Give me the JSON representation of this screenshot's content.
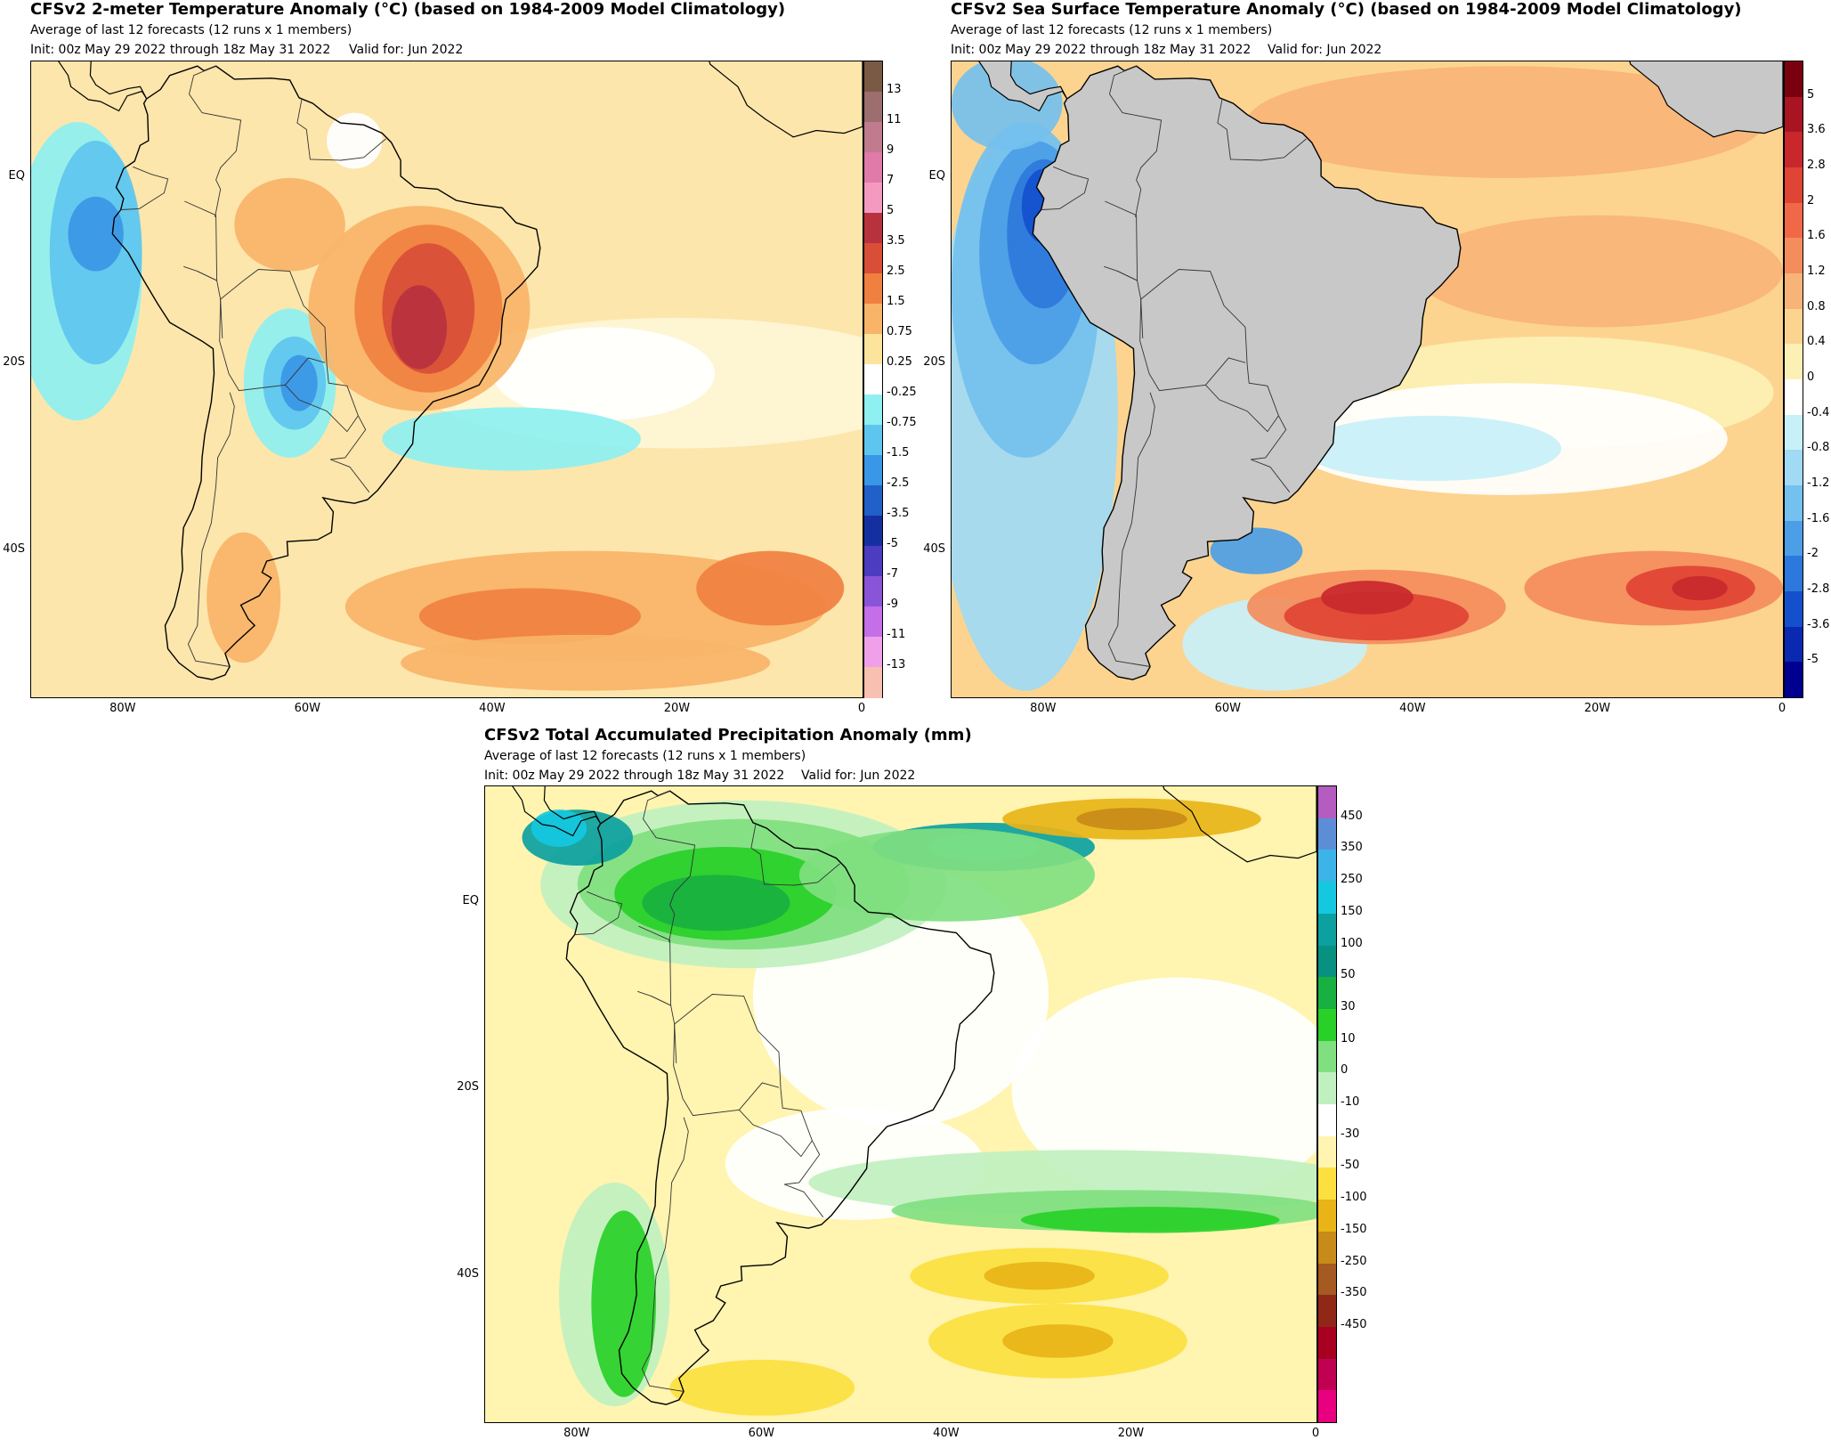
{
  "panels": [
    {
      "id": "t2m",
      "title": "CFSv2 2-meter Temperature Anomaly (°C) (based on 1984-2009 Model Climatology)",
      "subtitle": "Average of last 12 forecasts (12 runs x 1 members)",
      "init": "Init: 00z May 29 2022 through 18z May 31 2022",
      "valid": "Valid for: Jun 2022",
      "y_ticks": [
        "EQ",
        "20S",
        "40S"
      ],
      "x_ticks": [
        "80W",
        "60W",
        "40W",
        "20W",
        "0"
      ],
      "colorbar": {
        "labels": [
          "13",
          "11",
          "9",
          "7",
          "5",
          "3.5",
          "2.5",
          "1.5",
          "0.75",
          "0.25",
          "-0.25",
          "-0.75",
          "-1.5",
          "-2.5",
          "-3.5",
          "-5",
          "-7",
          "-9",
          "-11",
          "-13"
        ],
        "colors": [
          "#7a5a44",
          "#9c6e6e",
          "#c07c8e",
          "#e07aa8",
          "#f49ac1",
          "#b8323e",
          "#d84e36",
          "#f08040",
          "#f8b468",
          "#fde49c",
          "#ffffff",
          "#8ef0f0",
          "#5ec6ee",
          "#3a96e6",
          "#2060c8",
          "#1430a0",
          "#4c3cc0",
          "#8a54d8",
          "#c46ee8",
          "#f0a0e8",
          "#f8c0b0"
        ]
      },
      "map_style": "temperature"
    },
    {
      "id": "sst",
      "title": "CFSv2 Sea Surface Temperature Anomaly (°C) (based on 1984-2009 Model Climatology)",
      "subtitle": "Average of last 12 forecasts (12 runs x 1 members)",
      "init": "Init: 00z May 29 2022 through 18z May 31 2022",
      "valid": "Valid for: Jun 2022",
      "y_ticks": [
        "EQ",
        "20S",
        "40S"
      ],
      "x_ticks": [
        "80W",
        "60W",
        "40W",
        "20W",
        "0"
      ],
      "colorbar": {
        "labels": [
          "5",
          "3.6",
          "2.8",
          "2",
          "1.6",
          "1.2",
          "0.8",
          "0.4",
          "0",
          "-0.4",
          "-0.8",
          "-1.2",
          "-1.6",
          "-2",
          "-2.8",
          "-3.6",
          "-5"
        ],
        "colors": [
          "#7a0010",
          "#a81422",
          "#c8282c",
          "#e04434",
          "#f06848",
          "#f48c5c",
          "#f8b478",
          "#fcd490",
          "#fdf0b4",
          "#ffffff",
          "#c8f0f8",
          "#a0daf4",
          "#74c0ee",
          "#4c9ee6",
          "#2c78dc",
          "#1450cc",
          "#0a28b0",
          "#000090"
        ]
      },
      "map_style": "sst"
    },
    {
      "id": "prcp",
      "title": "CFSv2 Total Accumulated Precipitation Anomaly (mm)",
      "subtitle": "Average of last 12 forecasts (12 runs x 1 members)",
      "init": "Init: 00z May 29 2022 through 18z May 31 2022",
      "valid": "Valid for: Jun 2022",
      "y_ticks": [
        "EQ",
        "20S",
        "40S"
      ],
      "x_ticks": [
        "80W",
        "60W",
        "40W",
        "20W",
        "0"
      ],
      "colorbar": {
        "labels": [
          "450",
          "350",
          "250",
          "150",
          "100",
          "50",
          "30",
          "10",
          "0",
          "-10",
          "-30",
          "-50",
          "-100",
          "-150",
          "-250",
          "-350",
          "-450"
        ],
        "colors": [
          "#b45cc0",
          "#5c8ed8",
          "#3cb4e8",
          "#14c8e0",
          "#0ca0a0",
          "#089080",
          "#18b040",
          "#28d028",
          "#80e080",
          "#c0f0c0",
          "#ffffff",
          "#fff4b0",
          "#fce040",
          "#e8b418",
          "#c88a18",
          "#a45a20",
          "#902818",
          "#a80020",
          "#c00050",
          "#e80080"
        ]
      },
      "map_style": "precip"
    }
  ]
}
